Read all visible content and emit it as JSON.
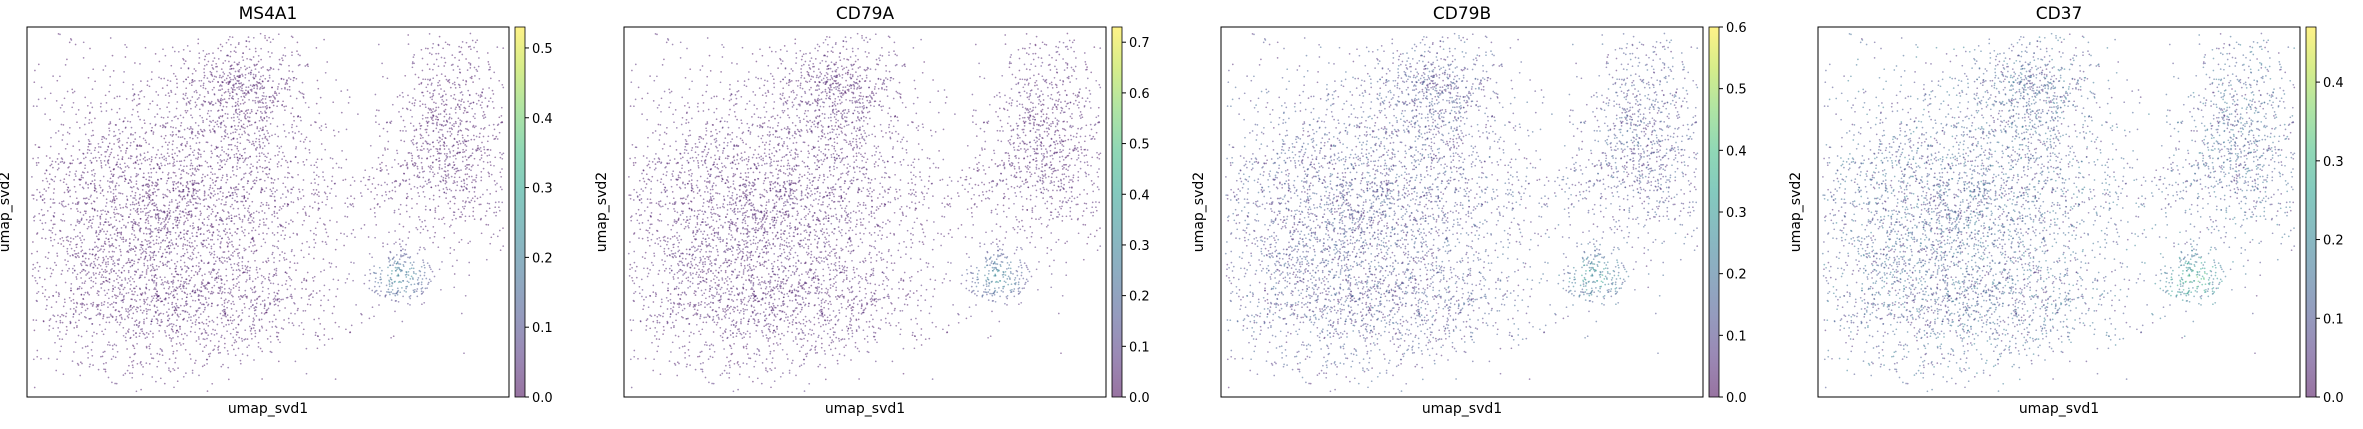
{
  "chart_data": [
    {
      "type": "scatter",
      "title": "MS4A1",
      "xlabel": "umap_svd1",
      "ylabel": "umap_svd2",
      "colorbar": {
        "range": [
          0.0,
          0.53
        ],
        "ticks": [
          "0.0",
          "0.1",
          "0.2",
          "0.3",
          "0.4",
          "0.5"
        ],
        "colormap": "viridis",
        "alpha": 0.5
      },
      "point_values": {
        "background_level": 0.03,
        "hotspot_level": 0.22,
        "hotspot_center": [
          0.55,
          -0.35
        ]
      }
    },
    {
      "type": "scatter",
      "title": "CD79A",
      "xlabel": "umap_svd1",
      "ylabel": "umap_svd2",
      "colorbar": {
        "range": [
          0.0,
          0.73
        ],
        "ticks": [
          "0.0",
          "0.1",
          "0.2",
          "0.3",
          "0.4",
          "0.5",
          "0.6",
          "0.7"
        ],
        "colormap": "viridis",
        "alpha": 0.5
      },
      "point_values": {
        "background_level": 0.05,
        "hotspot_level": 0.3,
        "hotspot_center": [
          0.55,
          -0.35
        ]
      }
    },
    {
      "type": "scatter",
      "title": "CD79B",
      "xlabel": "umap_svd1",
      "ylabel": "umap_svd2",
      "colorbar": {
        "range": [
          0.0,
          0.6
        ],
        "ticks": [
          "0.0",
          "0.1",
          "0.2",
          "0.3",
          "0.4",
          "0.5",
          "0.6"
        ],
        "colormap": "viridis",
        "alpha": 0.5
      },
      "point_values": {
        "background_level": 0.12,
        "hotspot_level": 0.28,
        "hotspot_center": [
          0.55,
          -0.35
        ]
      }
    },
    {
      "type": "scatter",
      "title": "CD37",
      "xlabel": "umap_svd1",
      "ylabel": "umap_svd2",
      "colorbar": {
        "range": [
          0.0,
          0.47
        ],
        "ticks": [
          "0.0",
          "0.1",
          "0.2",
          "0.3",
          "0.4"
        ],
        "colormap": "viridis",
        "alpha": 0.5
      },
      "point_values": {
        "background_level": 0.12,
        "hotspot_level": 0.27,
        "hotspot_center": [
          0.55,
          -0.35
        ]
      }
    }
  ]
}
